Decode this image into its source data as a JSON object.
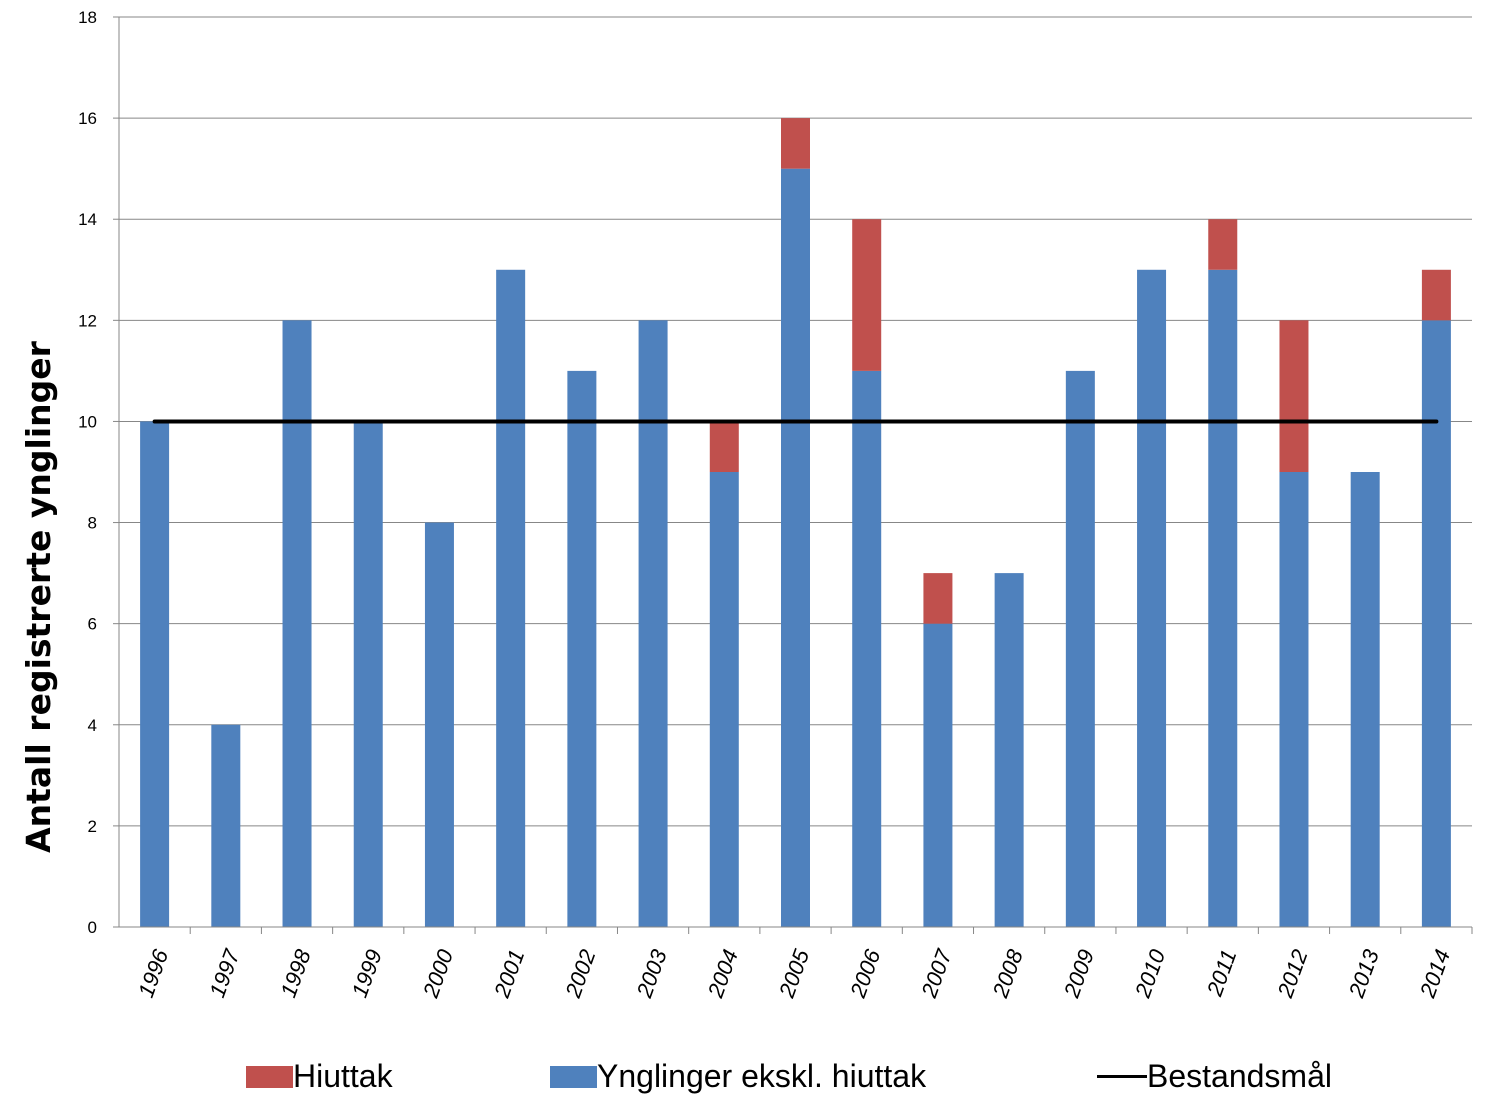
{
  "chart_data": {
    "type": "bar",
    "stacked": true,
    "ylabel": "Antall registrerte ynglinger",
    "ylim": [
      0,
      18
    ],
    "yticks": [
      0,
      2,
      4,
      6,
      8,
      10,
      12,
      14,
      16,
      18
    ],
    "grid": true,
    "legend_position": "bottom",
    "categories": [
      "1996",
      "1997",
      "1998",
      "1999",
      "2000",
      "2001",
      "2002",
      "2003",
      "2004",
      "2005",
      "2006",
      "2007",
      "2008",
      "2009",
      "2010",
      "2011",
      "2012",
      "2013",
      "2014"
    ],
    "series": [
      {
        "name": "Ynglinger ekskl. hiuttak",
        "color": "#4f81bd",
        "values": [
          10,
          4,
          12,
          10,
          8,
          13,
          11,
          12,
          9,
          15,
          11,
          6,
          7,
          11,
          13,
          13,
          9,
          9,
          12
        ]
      },
      {
        "name": "Hiuttak",
        "color": "#c0504d",
        "values": [
          0,
          0,
          0,
          0,
          0,
          0,
          0,
          0,
          1,
          1,
          3,
          1,
          0,
          0,
          0,
          1,
          3,
          0,
          1
        ]
      }
    ],
    "reference_line": {
      "name": "Bestandsmål",
      "value": 10,
      "color": "#000000"
    }
  },
  "legend": [
    {
      "label": "Hiuttak",
      "kind": "swatch",
      "color": "#c0504d"
    },
    {
      "label": "Ynglinger ekskl. hiuttak",
      "kind": "swatch",
      "color": "#4f81bd"
    },
    {
      "label": "Bestandsmål",
      "kind": "line",
      "color": "#000000"
    }
  ]
}
